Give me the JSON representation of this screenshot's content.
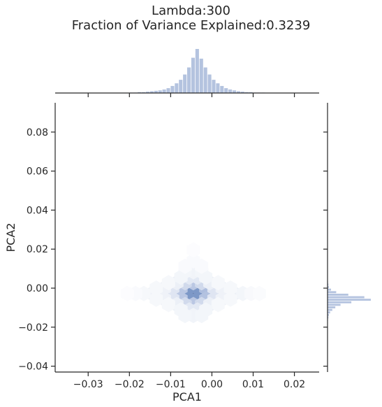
{
  "title_lines": [
    "Lambda:300",
    "Fraction of Variance Explained:0.3239"
  ],
  "chart_data": {
    "type": "hexbin-joint",
    "xlabel": "PCA1",
    "ylabel": "PCA2",
    "xlim": [
      -0.038,
      0.026
    ],
    "ylim": [
      -0.043,
      0.095
    ],
    "x_ticks": [
      -0.03,
      -0.02,
      -0.01,
      0.0,
      0.01,
      0.02
    ],
    "x_tick_labels": [
      "−0.03",
      "−0.02",
      "−0.01",
      "0.00",
      "0.01",
      "0.02"
    ],
    "y_ticks": [
      -0.04,
      -0.02,
      0.0,
      0.02,
      0.04,
      0.06,
      0.08
    ],
    "y_tick_labels": [
      "−0.04",
      "−0.02",
      "0.00",
      "0.02",
      "0.04",
      "0.06",
      "0.08"
    ],
    "hexbins": [
      {
        "x": -0.0045,
        "y": -0.0028,
        "level": 1.0
      },
      {
        "x": -0.0025,
        "y": -0.0028,
        "level": 0.82
      },
      {
        "x": -0.0065,
        "y": -0.0028,
        "level": 0.7
      },
      {
        "x": -0.0005,
        "y": -0.0028,
        "level": 0.6
      },
      {
        "x": -0.0085,
        "y": -0.0028,
        "level": 0.45
      },
      {
        "x": -0.0055,
        "y": 0.0,
        "level": 0.55
      },
      {
        "x": -0.0035,
        "y": 0.0,
        "level": 0.55
      },
      {
        "x": -0.0055,
        "y": -0.0056,
        "level": 0.55
      },
      {
        "x": -0.0035,
        "y": -0.0056,
        "level": 0.55
      },
      {
        "x": 0.0015,
        "y": -0.0028,
        "level": 0.3
      },
      {
        "x": -0.0105,
        "y": -0.0028,
        "level": 0.28
      },
      {
        "x": -0.0075,
        "y": 0.0,
        "level": 0.3
      },
      {
        "x": -0.0015,
        "y": 0.0,
        "level": 0.35
      },
      {
        "x": -0.0075,
        "y": -0.0056,
        "level": 0.3
      },
      {
        "x": -0.0015,
        "y": -0.0056,
        "level": 0.33
      },
      {
        "x": -0.0045,
        "y": 0.0028,
        "level": 0.3
      },
      {
        "x": -0.0045,
        "y": -0.0084,
        "level": 0.3
      },
      {
        "x": -0.0025,
        "y": 0.0028,
        "level": 0.2
      },
      {
        "x": -0.0065,
        "y": 0.0028,
        "level": 0.2
      },
      {
        "x": -0.0025,
        "y": -0.0084,
        "level": 0.2
      },
      {
        "x": -0.0065,
        "y": -0.0084,
        "level": 0.2
      },
      {
        "x": 0.0035,
        "y": -0.0028,
        "level": 0.15
      },
      {
        "x": -0.0125,
        "y": -0.0028,
        "level": 0.12
      },
      {
        "x": 0.0005,
        "y": 0.0,
        "level": 0.14
      },
      {
        "x": -0.0095,
        "y": 0.0,
        "level": 0.14
      },
      {
        "x": 0.0005,
        "y": -0.0056,
        "level": 0.14
      },
      {
        "x": -0.0095,
        "y": -0.0056,
        "level": 0.14
      },
      {
        "x": -0.0055,
        "y": 0.0056,
        "level": 0.12
      },
      {
        "x": -0.0035,
        "y": 0.0056,
        "level": 0.12
      },
      {
        "x": -0.0055,
        "y": -0.0112,
        "level": 0.12
      },
      {
        "x": -0.0035,
        "y": -0.0112,
        "level": 0.12
      },
      {
        "x": 0.0055,
        "y": -0.0028,
        "level": 0.08
      },
      {
        "x": -0.0145,
        "y": -0.0028,
        "level": 0.07
      },
      {
        "x": 0.0025,
        "y": 0.0,
        "level": 0.07
      },
      {
        "x": -0.0115,
        "y": 0.0,
        "level": 0.07
      },
      {
        "x": 0.0025,
        "y": -0.0056,
        "level": 0.07
      },
      {
        "x": -0.0115,
        "y": -0.0056,
        "level": 0.07
      },
      {
        "x": -0.0005,
        "y": 0.0028,
        "level": 0.08
      },
      {
        "x": -0.0085,
        "y": 0.0028,
        "level": 0.08
      },
      {
        "x": -0.0005,
        "y": -0.0084,
        "level": 0.08
      },
      {
        "x": -0.0085,
        "y": -0.0084,
        "level": 0.08
      },
      {
        "x": -0.0045,
        "y": 0.0084,
        "level": 0.06
      },
      {
        "x": -0.0045,
        "y": -0.014,
        "level": 0.06
      },
      {
        "x": -0.0025,
        "y": 0.0084,
        "level": 0.05
      },
      {
        "x": -0.0065,
        "y": 0.0084,
        "level": 0.05
      },
      {
        "x": -0.0025,
        "y": -0.014,
        "level": 0.05
      },
      {
        "x": -0.0065,
        "y": -0.014,
        "level": 0.05
      },
      {
        "x": 0.0075,
        "y": -0.0028,
        "level": 0.05
      },
      {
        "x": -0.0165,
        "y": -0.0028,
        "level": 0.04
      },
      {
        "x": 0.0045,
        "y": 0.0,
        "level": 0.04
      },
      {
        "x": -0.0135,
        "y": 0.0,
        "level": 0.04
      },
      {
        "x": 0.0045,
        "y": -0.0056,
        "level": 0.04
      },
      {
        "x": -0.0135,
        "y": -0.0056,
        "level": 0.04
      },
      {
        "x": 0.0015,
        "y": 0.0028,
        "level": 0.04
      },
      {
        "x": -0.0105,
        "y": 0.0028,
        "level": 0.04
      },
      {
        "x": 0.0015,
        "y": -0.0084,
        "level": 0.04
      },
      {
        "x": -0.0105,
        "y": -0.0084,
        "level": 0.04
      },
      {
        "x": -0.0015,
        "y": 0.0056,
        "level": 0.05
      },
      {
        "x": -0.0075,
        "y": 0.0056,
        "level": 0.05
      },
      {
        "x": -0.0015,
        "y": -0.0112,
        "level": 0.05
      },
      {
        "x": -0.0075,
        "y": -0.0112,
        "level": 0.05
      },
      {
        "x": 0.0095,
        "y": -0.0028,
        "level": 0.03
      },
      {
        "x": -0.0185,
        "y": -0.0028,
        "level": 0.025
      },
      {
        "x": 0.0115,
        "y": -0.0028,
        "level": 0.02
      },
      {
        "x": -0.0205,
        "y": -0.0028,
        "level": 0.015
      },
      {
        "x": -0.0045,
        "y": 0.014,
        "level": 0.025
      },
      {
        "x": -0.0045,
        "y": 0.0196,
        "level": 0.015
      },
      {
        "x": -0.0025,
        "y": 0.0112,
        "level": 0.025
      },
      {
        "x": -0.0065,
        "y": 0.0112,
        "level": 0.025
      }
    ],
    "hist_x": {
      "start": -0.02,
      "step": 0.001,
      "counts": [
        1,
        1,
        2,
        2,
        3,
        4,
        5,
        6,
        8,
        11,
        16,
        22,
        30,
        42,
        58,
        80,
        100,
        78,
        58,
        42,
        30,
        22,
        16,
        11,
        8,
        6,
        4,
        3,
        2,
        2,
        1,
        1,
        1
      ]
    },
    "hist_y": {
      "start": -0.017,
      "step": 0.0013,
      "counts": [
        1,
        2,
        3,
        6,
        11,
        18,
        30,
        55,
        100,
        85,
        48,
        20,
        8,
        3,
        2,
        1
      ]
    }
  }
}
